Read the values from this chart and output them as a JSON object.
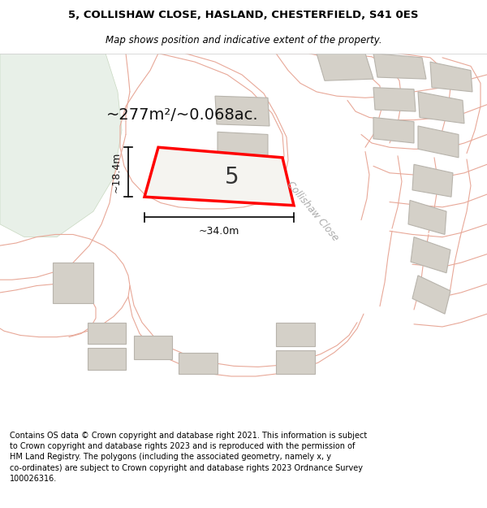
{
  "title_line1": "5, COLLISHAW CLOSE, HASLAND, CHESTERFIELD, S41 0ES",
  "title_line2": "Map shows position and indicative extent of the property.",
  "area_label": "~277m²/~0.068ac.",
  "plot_number": "5",
  "width_label": "~34.0m",
  "height_label": "~18.4m",
  "street_label": "Collishaw Close",
  "footer_text": "Contains OS data © Crown copyright and database right 2021. This information is subject to Crown copyright and database rights 2023 and is reproduced with the permission of HM Land Registry. The polygons (including the associated geometry, namely x, y co-ordinates) are subject to Crown copyright and database rights 2023 Ordnance Survey 100026316.",
  "map_bg": "#f0efea",
  "green_area_color": "#e8f0e8",
  "building_fill": "#d4d0c8",
  "building_stroke": "#b8b4ac",
  "road_line_color": "#e8a898",
  "highlight_color": "#ff0000",
  "dim_line_color": "#1a1a1a",
  "title_fontsize": 9.5,
  "subtitle_fontsize": 8.5,
  "label_fontsize": 14,
  "footer_fontsize": 7.0,
  "plot_label_fontsize": 20,
  "street_label_fontsize": 8.5
}
